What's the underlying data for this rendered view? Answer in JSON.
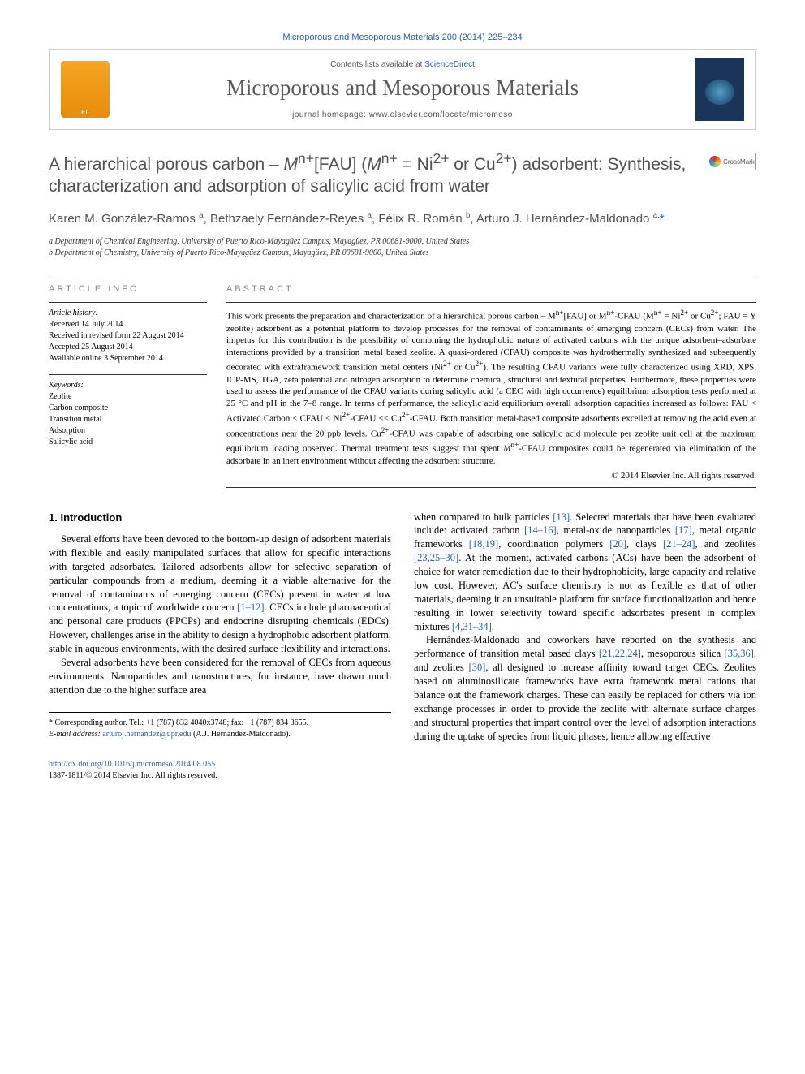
{
  "citation": "Microporous and Mesoporous Materials 200 (2014) 225–234",
  "masthead": {
    "contents_prefix": "Contents lists available at ",
    "contents_link": "ScienceDirect",
    "journal": "Microporous and Mesoporous Materials",
    "homepage_prefix": "journal homepage: ",
    "homepage_url": "www.elsevier.com/locate/micromeso"
  },
  "title_html": "A hierarchical porous carbon – <i>M</i><sup>n+</sup>[FAU] (<i>M</i><sup>n+</sup> = Ni<sup>2+</sup> or Cu<sup>2+</sup>) adsorbent: Synthesis, characterization and adsorption of salicylic acid from water",
  "crossmark_label": "CrossMark",
  "authors_html": "Karen M. González-Ramos <sup>a</sup>, Bethzaely Fernández-Reyes <sup>a</sup>, Félix R. Román <sup>b</sup>, Arturo J. Hernández-Maldonado <sup>a,</sup><span class=\"star\">*</span>",
  "affiliations": [
    "a Department of Chemical Engineering, University of Puerto Rico-Mayagüez Campus, Mayagüez, PR 00681-9000, United States",
    "b Department of Chemistry, University of Puerto Rico-Mayagüez Campus, Mayagüez, PR 00681-9000, United States"
  ],
  "info": {
    "heading": "ARTICLE INFO",
    "history_label": "Article history:",
    "history": [
      "Received 14 July 2014",
      "Received in revised form 22 August 2014",
      "Accepted 25 August 2014",
      "Available online 3 September 2014"
    ],
    "keywords_label": "Keywords:",
    "keywords": [
      "Zeolite",
      "Carbon composite",
      "Transition metal",
      "Adsorption",
      "Salicylic acid"
    ]
  },
  "abstract": {
    "heading": "ABSTRACT",
    "body_html": "This work presents the preparation and characterization of a hierarchical porous carbon – M<sup>n+</sup>[FAU] or M<sup>n+</sup>-CFAU (M<sup>n+</sup> = Ni<sup>2+</sup> or Cu<sup>2+</sup>; FAU = Y zeolite) adsorbent as a potential platform to develop processes for the removal of contaminants of emerging concern (CECs) from water. The impetus for this contribution is the possibility of combining the hydrophobic nature of activated carbons with the unique adsorbent–adsorbate interactions provided by a transition metal based zeolite. A quasi-ordered (CFAU) composite was hydrothermally synthesized and subsequently decorated with extraframework transition metal centers (Ni<sup>2+</sup> or Cu<sup>2+</sup>). The resulting CFAU variants were fully characterized using XRD, XPS, ICP-MS, TGA, zeta potential and nitrogen adsorption to determine chemical, structural and textural properties. Furthermore, these properties were used to assess the performance of the CFAU variants during salicylic acid (a CEC with high occurrence) equilibrium adsorption tests performed at 25 °C and pH in the 7–8 range. In terms of performance, the salicylic acid equilibrium overall adsorption capacities increased as follows: FAU &lt; Activated Carbon &lt; CFAU &lt; Ni<sup>2+</sup>-CFAU &lt;&lt; Cu<sup>2+</sup>-CFAU. Both transition metal-based composite adsorbents excelled at removing the acid even at concentrations near the 20 ppb levels. Cu<sup>2+</sup>-CFAU was capable of adsorbing one salicylic acid molecule per zeolite unit cell at the maximum equilibrium loading observed. Thermal treatment tests suggest that spent <i>M</i><sup>n+</sup>-CFAU composites could be regenerated via elimination of the adsorbate in an inert environment without affecting the adsorbent structure.",
    "copyright": "© 2014 Elsevier Inc. All rights reserved."
  },
  "body": {
    "section_number": "1.",
    "section_title": "Introduction",
    "p1_html": "Several efforts have been devoted to the bottom-up design of adsorbent materials with flexible and easily manipulated surfaces that allow for specific interactions with targeted adsorbates. Tailored adsorbents allow for selective separation of particular compounds from a medium, deeming it a viable alternative for the removal of contaminants of emerging concern (CECs) present in water at low concentrations, a topic of worldwide concern <span class=\"ref\">[1–12]</span>. CECs include pharmaceutical and personal care products (PPCPs) and endocrine disrupting chemicals (EDCs). However, challenges arise in the ability to design a hydrophobic adsorbent platform, stable in aqueous environments, with the desired surface flexibility and interactions.",
    "p2_html": "Several adsorbents have been considered for the removal of CECs from aqueous environments. Nanoparticles and nanostructures, for instance, have drawn much attention due to the higher surface area",
    "p3_html": "when compared to bulk particles <span class=\"ref\">[13]</span>. Selected materials that have been evaluated include: activated carbon <span class=\"ref\">[14–16]</span>, metal-oxide nanoparticles <span class=\"ref\">[17]</span>, metal organic frameworks <span class=\"ref\">[18,19]</span>, coordination polymers <span class=\"ref\">[20]</span>, clays <span class=\"ref\">[21–24]</span>, and zeolites <span class=\"ref\">[23,25–30]</span>. At the moment, activated carbons (ACs) have been the adsorbent of choice for water remediation due to their hydrophobicity, large capacity and relative low cost. However, AC's surface chemistry is not as flexible as that of other materials, deeming it an unsuitable platform for surface functionalization and hence resulting in lower selectivity toward specific adsorbates present in complex mixtures <span class=\"ref\">[4,31–34]</span>.",
    "p4_html": "Hernández-Maldonado and coworkers have reported on the synthesis and performance of transition metal based clays <span class=\"ref\">[21,22,24]</span>, mesoporous silica <span class=\"ref\">[35,36]</span>, and zeolites <span class=\"ref\">[30]</span>, all designed to increase affinity toward target CECs. Zeolites based on aluminosilicate frameworks have extra framework metal cations that balance out the framework charges. These can easily be replaced for others via ion exchange processes in order to provide the zeolite with alternate surface charges and structural properties that impart control over the level of adsorption interactions during the uptake of species from liquid phases, hence allowing effective"
  },
  "footnote": {
    "corresponding": "* Corresponding author. Tel.: +1 (787) 832 4040x3748; fax: +1 (787) 834 3655.",
    "email_label": "E-mail address:",
    "email": "arturoj.hernandez@upr.edu",
    "email_suffix": "(A.J. Hernández-Maldonado)."
  },
  "footer": {
    "doi": "http://dx.doi.org/10.1016/j.micromeso.2014.08.055",
    "issn_line": "1387-1811/© 2014 Elsevier Inc. All rights reserved."
  },
  "colors": {
    "link": "#2d5ea8",
    "heading_gray": "#525252",
    "rule": "#333333"
  }
}
